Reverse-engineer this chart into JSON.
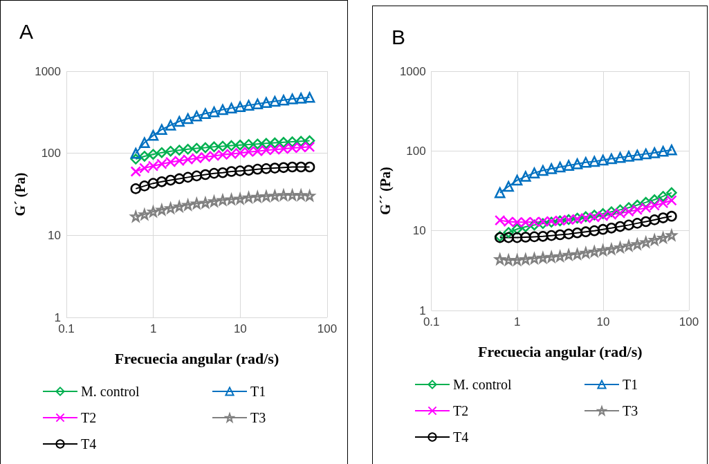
{
  "chart_data": [
    {
      "type": "line",
      "title": "A",
      "xlabel": "Frecuecia angular (rad/s)",
      "ylabel": "G´ (Pa)",
      "log": "xy",
      "grid": true,
      "legend": "bottom",
      "xlim": [
        0.1,
        100
      ],
      "xticks": [
        0.1,
        1,
        10,
        100
      ],
      "ylim": [
        1,
        1000
      ],
      "yticks": [
        1,
        10,
        100,
        1000
      ],
      "x": [
        0.628,
        0.791,
        0.996,
        1.25,
        1.58,
        1.99,
        2.5,
        3.15,
        3.97,
        5,
        6.28,
        7.91,
        9.96,
        12.5,
        15.8,
        19.9,
        25,
        31.5,
        39.7,
        50,
        62.8
      ],
      "series": [
        {
          "name": "M. control",
          "color": "#00b050",
          "marker": "diamond",
          "values": [
            85,
            92,
            97,
            102,
            106,
            109,
            112,
            115,
            117,
            120,
            122,
            124,
            126,
            128,
            130,
            132,
            134,
            136,
            138,
            140,
            142
          ]
        },
        {
          "name": "T1",
          "color": "#0070c0",
          "marker": "triangle",
          "values": [
            100,
            135,
            165,
            195,
            220,
            245,
            265,
            285,
            305,
            320,
            340,
            355,
            370,
            385,
            400,
            415,
            430,
            445,
            460,
            470,
            480
          ]
        },
        {
          "name": "T2",
          "color": "#ff00ff",
          "marker": "cross",
          "values": [
            60,
            66,
            70,
            74,
            78,
            81,
            84,
            87,
            90,
            93,
            96,
            98,
            101,
            104,
            106,
            109,
            111,
            113,
            116,
            118,
            120
          ]
        },
        {
          "name": "T3",
          "color": "#808080",
          "marker": "star",
          "values": [
            17,
            18,
            19.5,
            20.5,
            21.5,
            22.5,
            23.5,
            24.5,
            25,
            26,
            27,
            27.5,
            28,
            29,
            29.5,
            30,
            30.5,
            31,
            31,
            31,
            30.5
          ]
        },
        {
          "name": "T4",
          "color": "#000000",
          "marker": "circle",
          "values": [
            37,
            40,
            43,
            45,
            47,
            49,
            51,
            53,
            55,
            57,
            58,
            60,
            61,
            62,
            64,
            65,
            66,
            67,
            68,
            68,
            68
          ]
        }
      ]
    },
    {
      "type": "line",
      "title": "B",
      "xlabel": "Frecuecia angular (rad/s)",
      "ylabel": "G´´ (Pa)",
      "log": "xy",
      "grid": true,
      "legend": "bottom",
      "xlim": [
        0.1,
        100
      ],
      "xticks": [
        0.1,
        1,
        10,
        100
      ],
      "ylim": [
        1,
        1000
      ],
      "yticks": [
        1,
        10,
        100,
        1000
      ],
      "x": [
        0.628,
        0.791,
        0.996,
        1.25,
        1.58,
        1.99,
        2.5,
        3.15,
        3.97,
        5,
        6.28,
        7.91,
        9.96,
        12.5,
        15.8,
        19.9,
        25,
        31.5,
        39.7,
        50,
        62.8
      ],
      "series": [
        {
          "name": "M. control",
          "color": "#00b050",
          "marker": "diamond",
          "values": [
            8.5,
            9.5,
            10.5,
            11.2,
            11.8,
            12.3,
            12.8,
            13.3,
            13.8,
            14.4,
            15,
            15.7,
            16.4,
            17.3,
            18.3,
            19.5,
            21,
            22.7,
            24.5,
            27,
            30
          ]
        },
        {
          "name": "T1",
          "color": "#0070c0",
          "marker": "triangle",
          "values": [
            30,
            36,
            43,
            48,
            53,
            57,
            60,
            63,
            66,
            69,
            72,
            74,
            77,
            80,
            83,
            86,
            89,
            92,
            95,
            99,
            103
          ]
        },
        {
          "name": "T2",
          "color": "#ff00ff",
          "marker": "cross",
          "values": [
            13.5,
            13,
            12.8,
            12.8,
            12.9,
            13,
            13.2,
            13.4,
            13.7,
            14,
            14.4,
            14.8,
            15.3,
            15.9,
            16.6,
            17.4,
            18.3,
            19.4,
            20.7,
            22.2,
            24
          ]
        },
        {
          "name": "T3",
          "color": "#808080",
          "marker": "star",
          "values": [
            4.4,
            4.3,
            4.3,
            4.4,
            4.5,
            4.6,
            4.7,
            4.8,
            5,
            5.1,
            5.3,
            5.5,
            5.7,
            5.9,
            6.2,
            6.5,
            6.8,
            7.2,
            7.7,
            8.2,
            8.8
          ]
        },
        {
          "name": "T4",
          "color": "#000000",
          "marker": "circle",
          "values": [
            8.2,
            8.2,
            8.2,
            8.3,
            8.4,
            8.5,
            8.7,
            8.9,
            9.1,
            9.4,
            9.7,
            10,
            10.4,
            10.8,
            11.3,
            11.8,
            12.4,
            13,
            13.7,
            14.5,
            15.2
          ]
        }
      ]
    }
  ]
}
